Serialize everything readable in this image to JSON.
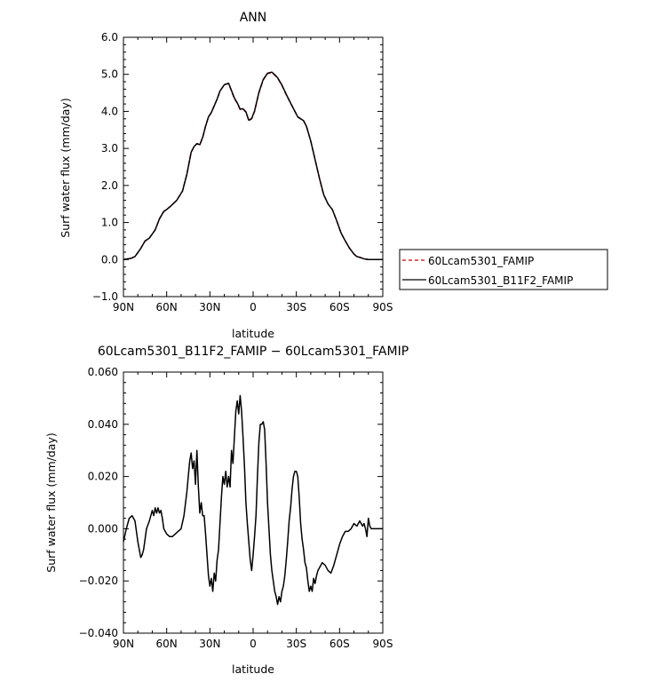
{
  "chart_data": [
    {
      "type": "line",
      "title": "ANN",
      "xlabel": "latitude",
      "ylabel": "Surf water flux (mm/day)",
      "xlim": [
        -90,
        90
      ],
      "ylim": [
        -1.0,
        6.0
      ],
      "x_ticks": [
        -90,
        -60,
        -30,
        0,
        30,
        60,
        90
      ],
      "x_tick_labels": [
        "90N",
        "60N",
        "30N",
        "0",
        "30S",
        "60S",
        "90S"
      ],
      "y_ticks": [
        -1,
        0,
        1,
        2,
        3,
        4,
        5,
        6
      ],
      "y_tick_labels": [
        "−1.0",
        "0.0",
        "1.0",
        "2.0",
        "3.0",
        "4.0",
        "5.0",
        "6.0"
      ],
      "grid": false,
      "legend_position": "right",
      "x": [
        -90,
        -85,
        -82,
        -78,
        -75,
        -72,
        -68,
        -65,
        -62,
        -60,
        -57,
        -53,
        -49,
        -46,
        -43,
        -41,
        -39,
        -37,
        -35,
        -33,
        -31,
        -29,
        -27,
        -25,
        -23,
        -20,
        -17,
        -15,
        -13,
        -11,
        -9,
        -7,
        -5,
        -3,
        -1,
        1,
        4,
        7,
        10,
        13,
        15,
        17,
        20,
        23,
        27,
        31,
        35,
        37,
        40,
        43,
        46,
        49,
        52,
        55,
        58,
        61,
        64,
        67,
        70,
        72,
        74,
        77,
        80,
        83,
        86,
        90
      ],
      "series": [
        {
          "name": "60Lcam5301_FAMIP",
          "color": "#cc0000",
          "style": "dashed",
          "values": [
            0.0,
            0.03,
            0.08,
            0.3,
            0.5,
            0.58,
            0.8,
            1.1,
            1.3,
            1.35,
            1.45,
            1.6,
            1.85,
            2.3,
            2.9,
            3.05,
            3.13,
            3.1,
            3.3,
            3.6,
            3.85,
            3.97,
            4.15,
            4.33,
            4.55,
            4.72,
            4.75,
            4.55,
            4.35,
            4.22,
            4.05,
            4.06,
            3.98,
            3.75,
            3.8,
            4.0,
            4.5,
            4.85,
            5.02,
            5.05,
            4.98,
            4.9,
            4.7,
            4.45,
            4.15,
            3.85,
            3.75,
            3.6,
            3.2,
            2.7,
            2.2,
            1.75,
            1.5,
            1.35,
            1.05,
            0.72,
            0.5,
            0.3,
            0.15,
            0.08,
            0.06,
            0.02,
            0.0,
            0.0,
            0.0,
            0.0
          ]
        },
        {
          "name": "60Lcam5301_B11F2_FAMIP",
          "color": "#000000",
          "style": "solid",
          "values": [
            0.0,
            0.03,
            0.08,
            0.3,
            0.5,
            0.58,
            0.8,
            1.1,
            1.3,
            1.35,
            1.45,
            1.6,
            1.85,
            2.3,
            2.9,
            3.05,
            3.13,
            3.1,
            3.3,
            3.6,
            3.85,
            3.97,
            4.15,
            4.33,
            4.55,
            4.72,
            4.76,
            4.56,
            4.36,
            4.23,
            4.06,
            4.07,
            3.99,
            3.76,
            3.81,
            4.01,
            4.51,
            4.86,
            5.03,
            5.06,
            4.99,
            4.91,
            4.71,
            4.46,
            4.15,
            3.85,
            3.75,
            3.6,
            3.2,
            2.7,
            2.2,
            1.75,
            1.5,
            1.35,
            1.05,
            0.72,
            0.5,
            0.3,
            0.15,
            0.08,
            0.06,
            0.02,
            0.0,
            0.0,
            0.0,
            0.0
          ]
        }
      ]
    },
    {
      "type": "line",
      "title": "60Lcam5301_B11F2_FAMIP − 60Lcam5301_FAMIP",
      "xlabel": "latitude",
      "ylabel": "Surf water flux (mm/day)",
      "xlim": [
        -90,
        90
      ],
      "ylim": [
        -0.04,
        0.06
      ],
      "x_ticks": [
        -90,
        -60,
        -30,
        0,
        30,
        60,
        90
      ],
      "x_tick_labels": [
        "90N",
        "60N",
        "30N",
        "0",
        "30S",
        "60S",
        "90S"
      ],
      "y_ticks": [
        -0.04,
        -0.02,
        0.0,
        0.02,
        0.04,
        0.06
      ],
      "y_tick_labels": [
        "−0.040",
        "−0.020",
        "0.000",
        "0.020",
        "0.040",
        "0.060"
      ],
      "grid": false,
      "x": [
        -90,
        -88,
        -86,
        -84,
        -82,
        -80,
        -78,
        -77,
        -76,
        -75,
        -74,
        -72,
        -70,
        -69,
        -68,
        -67,
        -66,
        -65,
        -64,
        -63,
        -62,
        -60,
        -58,
        -56,
        -54,
        -52,
        -50,
        -48,
        -46,
        -45,
        -44,
        -43,
        -42,
        -41,
        -40,
        -39,
        -38,
        -37,
        -36,
        -35,
        -34,
        -33,
        -32,
        -31,
        -30,
        -29,
        -28,
        -27,
        -26,
        -25,
        -24,
        -23,
        -22,
        -21,
        -20,
        -19,
        -18,
        -17,
        -16,
        -15,
        -14,
        -13,
        -12,
        -11,
        -10,
        -9,
        -8,
        -7,
        -6,
        -5,
        -4,
        -3,
        -2,
        -1,
        0,
        1,
        2,
        3,
        4,
        5,
        6,
        7,
        8,
        9,
        10,
        11,
        12,
        13,
        14,
        15,
        16,
        17,
        18,
        19,
        20,
        21,
        22,
        23,
        24,
        25,
        26,
        27,
        28,
        29,
        30,
        31,
        32,
        33,
        34,
        35,
        36,
        37,
        38,
        39,
        40,
        41,
        42,
        43,
        44,
        45,
        46,
        47,
        48,
        50,
        52,
        54,
        56,
        58,
        60,
        62,
        64,
        66,
        68,
        70,
        72,
        74,
        76,
        77,
        78,
        79,
        80,
        81,
        82,
        84,
        86,
        88,
        90
      ],
      "series": [
        {
          "name": "",
          "color": "#000000",
          "style": "solid",
          "values": [
            -0.005,
            0.0,
            0.004,
            0.005,
            0.003,
            -0.005,
            -0.011,
            -0.01,
            -0.008,
            -0.004,
            0.0,
            0.003,
            0.007,
            0.005,
            0.008,
            0.006,
            0.008,
            0.006,
            0.007,
            0.004,
            0.0,
            -0.002,
            -0.003,
            -0.003,
            -0.002,
            -0.001,
            0.0,
            0.005,
            0.014,
            0.02,
            0.026,
            0.029,
            0.023,
            0.026,
            0.017,
            0.03,
            0.016,
            0.006,
            0.01,
            0.005,
            0.005,
            -0.002,
            -0.01,
            -0.018,
            -0.022,
            -0.019,
            -0.024,
            -0.017,
            -0.02,
            -0.012,
            -0.008,
            0.002,
            0.012,
            0.02,
            0.017,
            0.022,
            0.016,
            0.02,
            0.016,
            0.03,
            0.025,
            0.035,
            0.045,
            0.049,
            0.044,
            0.051,
            0.045,
            0.035,
            0.024,
            0.01,
            0.002,
            -0.005,
            -0.012,
            -0.016,
            -0.01,
            -0.003,
            0.005,
            0.02,
            0.033,
            0.04,
            0.04,
            0.041,
            0.038,
            0.025,
            0.01,
            0.0,
            -0.01,
            -0.016,
            -0.02,
            -0.024,
            -0.026,
            -0.029,
            -0.026,
            -0.028,
            -0.024,
            -0.022,
            -0.018,
            -0.012,
            -0.005,
            0.003,
            0.008,
            0.015,
            0.02,
            0.022,
            0.022,
            0.02,
            0.012,
            0.002,
            -0.004,
            -0.008,
            -0.013,
            -0.015,
            -0.02,
            -0.024,
            -0.022,
            -0.024,
            -0.019,
            -0.021,
            -0.018,
            -0.016,
            -0.015,
            -0.014,
            -0.013,
            -0.014,
            -0.016,
            -0.017,
            -0.014,
            -0.01,
            -0.006,
            -0.003,
            -0.001,
            -0.001,
            0.0,
            0.002,
            0.001,
            0.003,
            0.001,
            0.002,
            0.0,
            -0.003,
            0.004,
            0.001,
            0.0,
            0.0,
            0.0,
            0.0,
            0.0
          ]
        }
      ]
    }
  ]
}
